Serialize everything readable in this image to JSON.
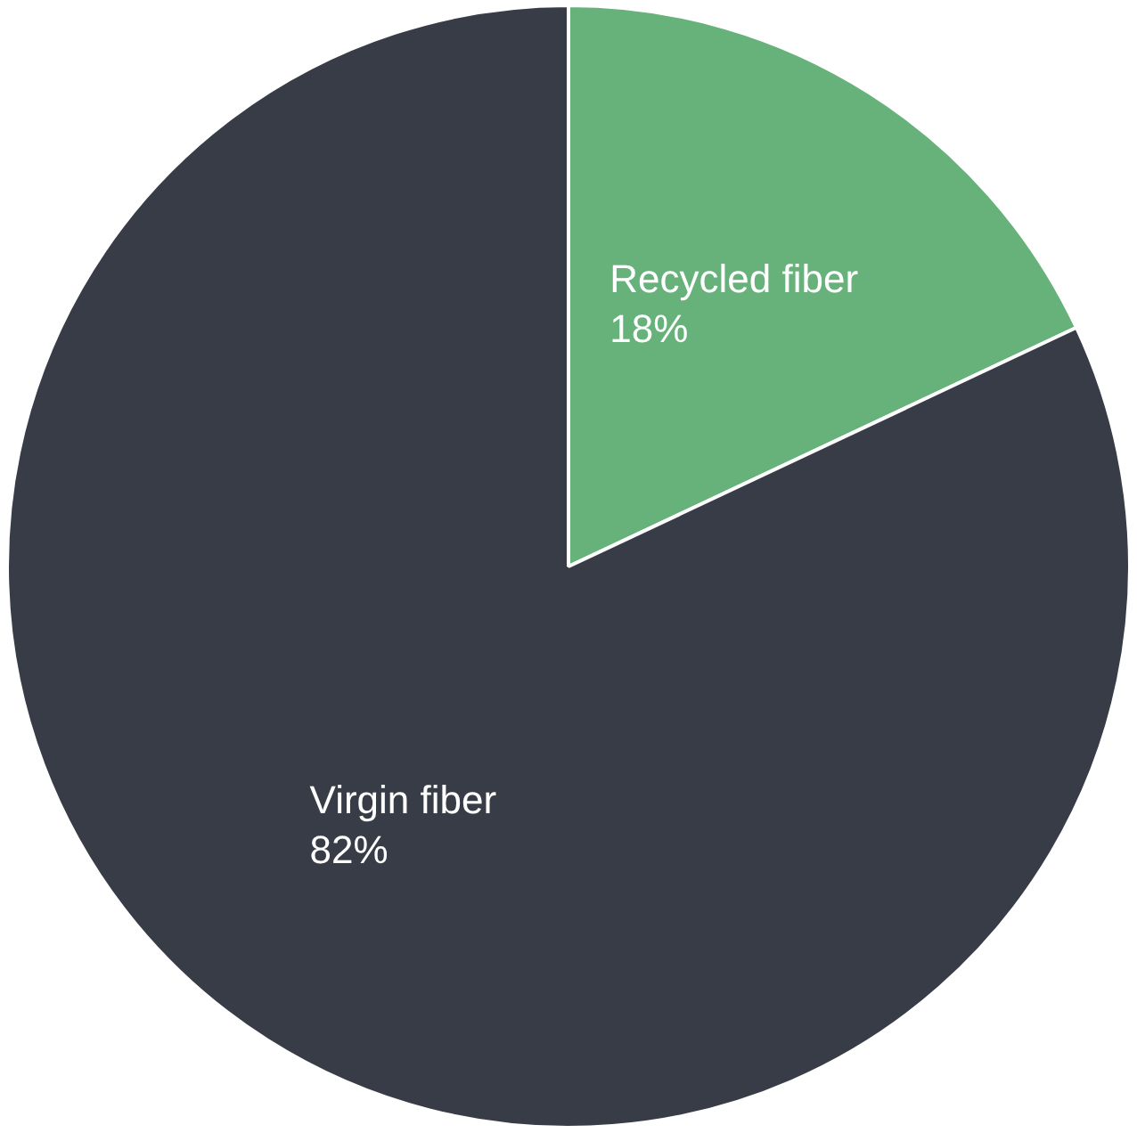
{
  "chart_data": {
    "type": "pie",
    "categories": [
      "Recycled fiber",
      "Virgin fiber"
    ],
    "values": [
      18,
      82
    ],
    "colors": [
      "#66b27a",
      "#373c47"
    ],
    "value_labels": [
      "18%",
      "82%"
    ],
    "legend": false
  }
}
